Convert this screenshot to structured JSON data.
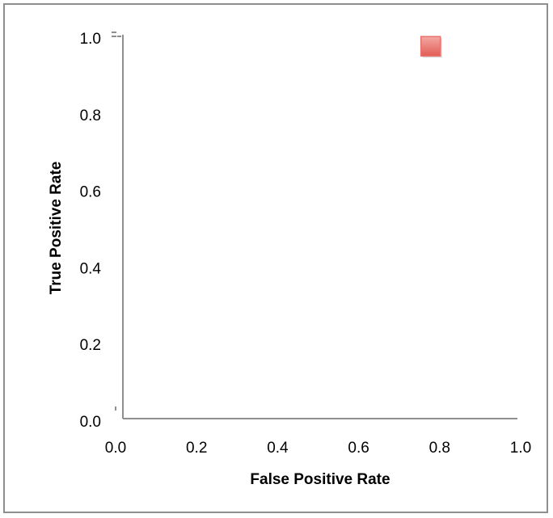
{
  "chart_data": {
    "type": "scatter",
    "title": "",
    "xlabel": "False Positive Rate",
    "ylabel": "True Positive Rate",
    "xlim": [
      0.0,
      1.0
    ],
    "ylim": [
      0.0,
      1.0
    ],
    "xticks": [
      "0.0",
      "0.2",
      "0.4",
      "0.6",
      "0.8",
      "1.0"
    ],
    "yticks": [
      "0.0",
      "0.2",
      "0.4",
      "0.6",
      "0.8",
      "1.0"
    ],
    "grid": false,
    "legend": "none",
    "series": [
      {
        "marker": "square",
        "color": "#e8716b",
        "points": [
          {
            "x": 0.78,
            "y": 0.97
          }
        ]
      }
    ]
  }
}
